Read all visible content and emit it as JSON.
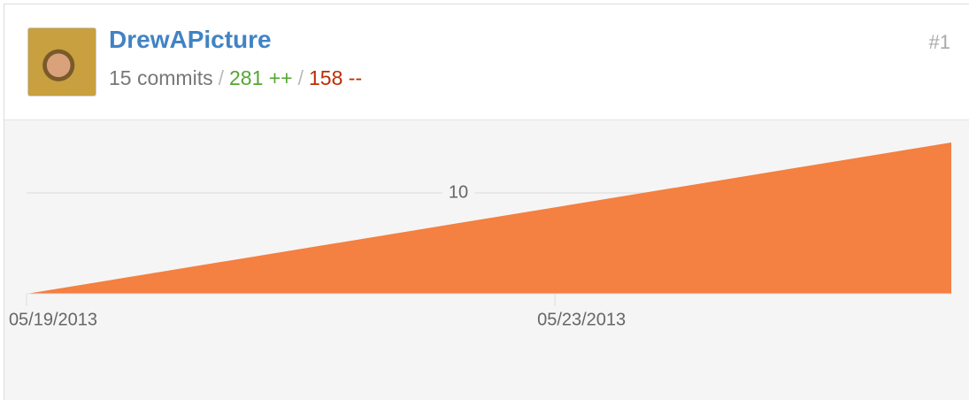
{
  "header": {
    "name": "DrewAPicture",
    "commits": "15 commits",
    "separator": "/",
    "additions": "281 ++",
    "deletions": "158 --",
    "rank": "#1"
  },
  "chart_data": {
    "type": "area",
    "x": [
      "05/19/2013",
      "05/26/2013"
    ],
    "values": [
      0,
      15
    ],
    "color": "#f48041",
    "xlim": [
      "05/19/2013",
      "05/26/2013"
    ],
    "xticks": [
      "05/19/2013",
      "05/23/2013"
    ],
    "ylim": [
      0,
      15
    ],
    "yticks": [
      10
    ],
    "grid": true
  }
}
